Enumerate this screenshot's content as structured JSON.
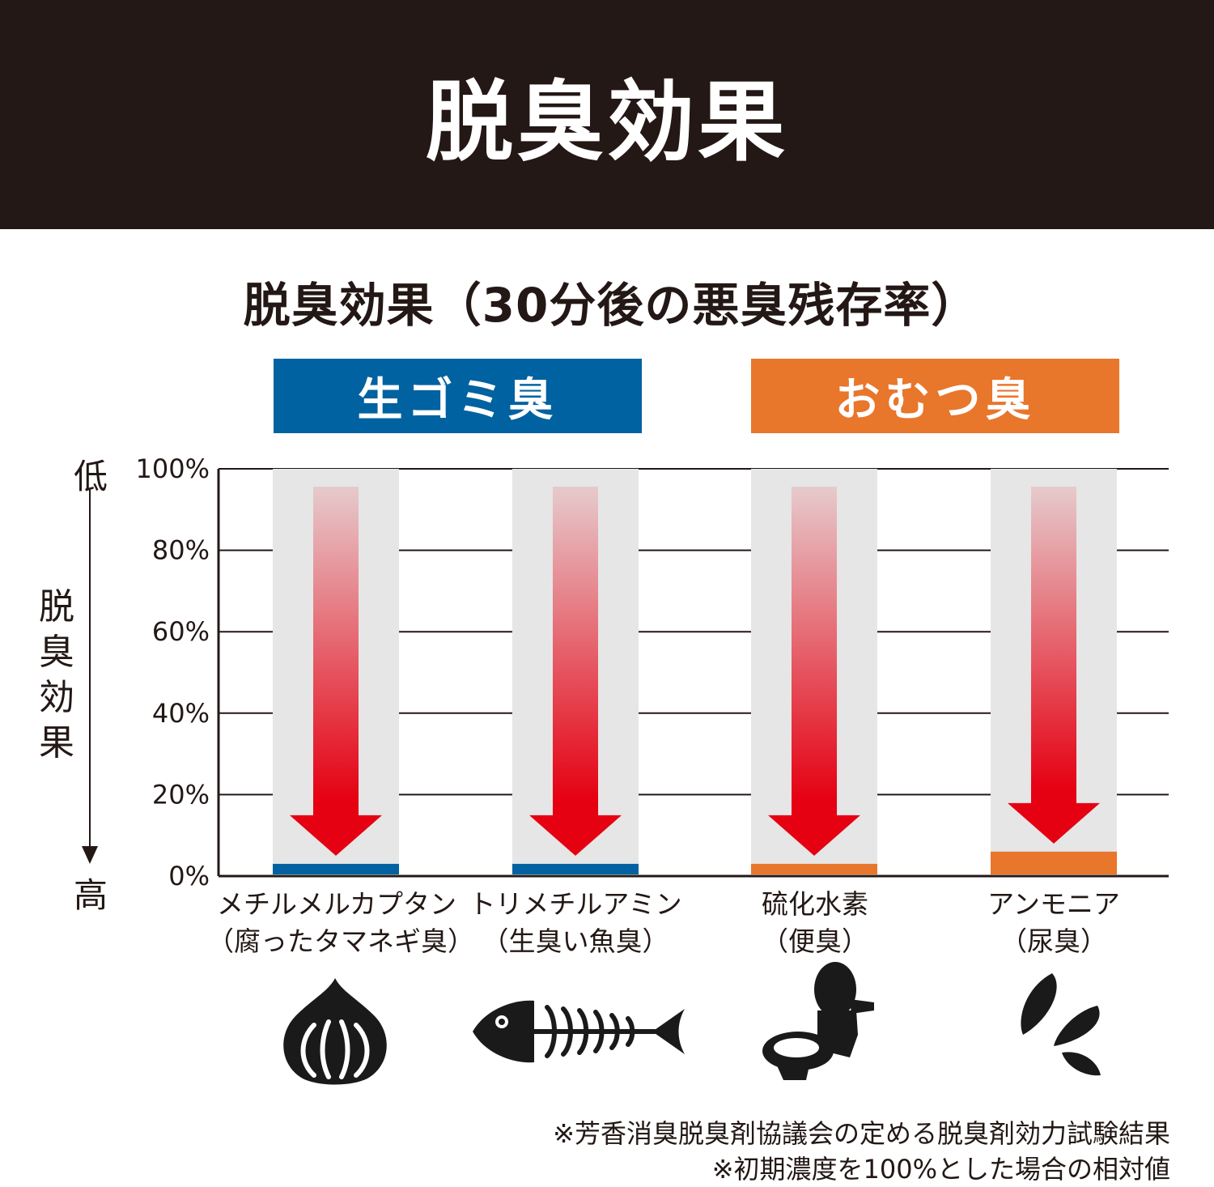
{
  "header": {
    "title": "脱臭効果"
  },
  "colors": {
    "header_bg": "#231815",
    "raw_garbage": "#0062a0",
    "diaper": "#e8762b",
    "arrow": "#e50012",
    "column_bg": "#e6e6e6"
  },
  "chart_data": {
    "type": "bar",
    "title": "脱臭効果（30分後の悪臭残存率）",
    "ylabel": "脱臭効果",
    "y_axis_top_label": "低",
    "y_axis_bottom_label": "高",
    "y_ticks": [
      "100%",
      "80%",
      "60%",
      "40%",
      "20%",
      "0%"
    ],
    "ylim": [
      0,
      100
    ],
    "grid": true,
    "groups": [
      {
        "label": "生ゴミ臭",
        "color": "#0062a0",
        "categories": [
          0,
          1
        ]
      },
      {
        "label": "おむつ臭",
        "color": "#e8762b",
        "categories": [
          2,
          3
        ]
      }
    ],
    "categories": [
      {
        "line1": "メチルメルカプタン",
        "line2": "（腐ったタマネギ臭）",
        "icon": "onion-icon"
      },
      {
        "line1": "トリメチルアミン",
        "line2": "（生臭い魚臭）",
        "icon": "fish-bone-icon"
      },
      {
        "line1": "硫化水素",
        "line2": "（便臭）",
        "icon": "toilet-icon"
      },
      {
        "line1": "アンモニア",
        "line2": "（尿臭）",
        "icon": "splash-icon"
      }
    ],
    "values": [
      3,
      3,
      3,
      6
    ],
    "initial": [
      100,
      100,
      100,
      100
    ]
  },
  "notes": [
    "※芳香消臭脱臭剤協議会の定める脱臭剤効力試験結果",
    "※初期濃度を100%とした場合の相対値"
  ]
}
